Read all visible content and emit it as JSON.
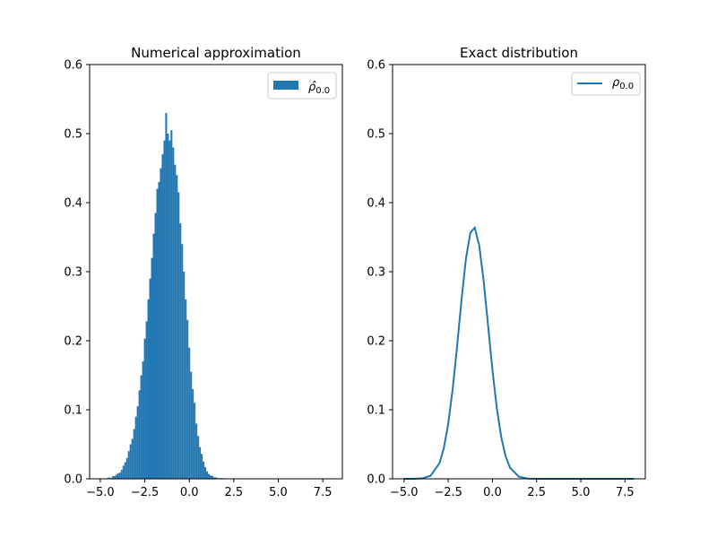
{
  "chart_data": [
    {
      "type": "bar",
      "title": "Numerical approximation",
      "xlabel": "",
      "ylabel": "",
      "xlim": [
        -5.6,
        8.6
      ],
      "ylim": [
        0,
        0.6
      ],
      "xticks": [
        -5.0,
        -2.5,
        0.0,
        2.5,
        5.0,
        7.5
      ],
      "xtick_labels": [
        "−5.0",
        "−2.5",
        "0.0",
        "2.5",
        "5.0",
        "7.5"
      ],
      "yticks": [
        0,
        0.1,
        0.2,
        0.3,
        0.4,
        0.5,
        0.6
      ],
      "ytick_labels": [
        "0.0",
        "0.1",
        "0.2",
        "0.3",
        "0.4",
        "0.5",
        "0.6"
      ],
      "grid": false,
      "legend": {
        "position": "top-right",
        "entries": [
          {
            "label_main": "ρ̂",
            "label_sub": "0.0",
            "marker": "patch"
          }
        ]
      },
      "series": [
        {
          "bin_width": 0.1,
          "color": "#1f77b4",
          "bin_centers": [
            -4.6,
            -4.5,
            -4.4,
            -4.3,
            -4.2,
            -4.1,
            -4.0,
            -3.9,
            -3.8,
            -3.7,
            -3.6,
            -3.5,
            -3.4,
            -3.3,
            -3.2,
            -3.1,
            -3.0,
            -2.9,
            -2.8,
            -2.7,
            -2.6,
            -2.5,
            -2.4,
            -2.3,
            -2.2,
            -2.1,
            -2.0,
            -1.9,
            -1.8,
            -1.7,
            -1.6,
            -1.5,
            -1.4,
            -1.3,
            -1.2,
            -1.1,
            -1.0,
            -0.9,
            -0.8,
            -0.7,
            -0.6,
            -0.5,
            -0.4,
            -0.3,
            -0.2,
            -0.1,
            0.0,
            0.1,
            0.2,
            0.3,
            0.4,
            0.5,
            0.6,
            0.7,
            0.8,
            0.9,
            1.0,
            1.1,
            1.2,
            1.3,
            1.4,
            1.5,
            1.6,
            1.7,
            1.8,
            1.9
          ],
          "values": [
            0.001,
            0.002,
            0.001,
            0.004,
            0.004,
            0.006,
            0.008,
            0.009,
            0.013,
            0.019,
            0.024,
            0.03,
            0.04,
            0.05,
            0.058,
            0.072,
            0.09,
            0.105,
            0.128,
            0.15,
            0.17,
            0.203,
            0.228,
            0.26,
            0.29,
            0.32,
            0.355,
            0.385,
            0.42,
            0.43,
            0.45,
            0.47,
            0.49,
            0.53,
            0.5,
            0.49,
            0.505,
            0.48,
            0.455,
            0.44,
            0.415,
            0.37,
            0.34,
            0.3,
            0.26,
            0.23,
            0.19,
            0.155,
            0.13,
            0.11,
            0.08,
            0.062,
            0.046,
            0.036,
            0.025,
            0.017,
            0.011,
            0.007,
            0.005,
            0.004,
            0.002,
            0.002,
            0.001,
            0.001,
            0.001,
            0.001
          ]
        }
      ]
    },
    {
      "type": "line",
      "title": "Exact distribution",
      "xlabel": "",
      "ylabel": "",
      "xlim": [
        -5.65,
        8.65
      ],
      "ylim": [
        0,
        0.6
      ],
      "xticks": [
        -5.0,
        -2.5,
        0.0,
        2.5,
        5.0,
        7.5
      ],
      "xtick_labels": [
        "−5.0",
        "−2.5",
        "0.0",
        "2.5",
        "5.0",
        "7.5"
      ],
      "yticks": [
        0,
        0.1,
        0.2,
        0.3,
        0.4,
        0.5,
        0.6
      ],
      "ytick_labels": [
        "0.0",
        "0.1",
        "0.2",
        "0.3",
        "0.4",
        "0.5",
        "0.6"
      ],
      "grid": false,
      "legend": {
        "position": "top-right",
        "entries": [
          {
            "label_main": "ρ",
            "label_sub": "0.0",
            "marker": "line"
          }
        ]
      },
      "series": [
        {
          "color": "#1f77b4",
          "x": [
            -5.0,
            -4.5,
            -4.0,
            -3.5,
            -3.0,
            -2.75,
            -2.5,
            -2.25,
            -2.0,
            -1.75,
            -1.5,
            -1.25,
            -1.0,
            -0.75,
            -0.5,
            -0.25,
            0.0,
            0.25,
            0.5,
            0.75,
            1.0,
            1.5,
            2.0,
            2.5,
            3.0,
            4.0,
            5.0,
            6.0,
            7.0,
            8.0
          ],
          "y": [
            0.0,
            0.0,
            0.0006,
            0.0044,
            0.0225,
            0.0443,
            0.0796,
            0.1295,
            0.1917,
            0.2588,
            0.3183,
            0.3564,
            0.3638,
            0.3384,
            0.2876,
            0.2232,
            0.158,
            0.1021,
            0.0602,
            0.0324,
            0.0159,
            0.003,
            0.0004,
            0.0,
            0.0,
            0.0,
            0.0,
            0.0,
            0.0,
            0.0
          ]
        }
      ]
    }
  ]
}
